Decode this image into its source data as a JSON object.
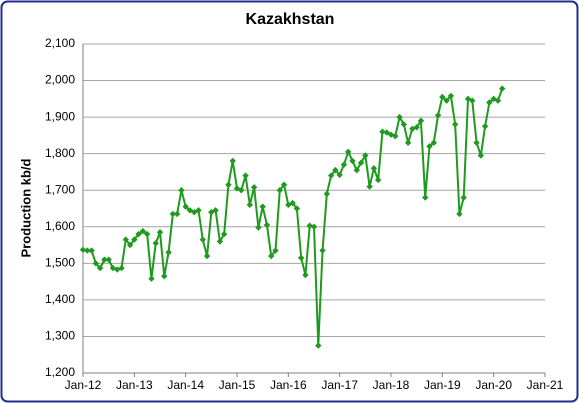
{
  "chart_data": {
    "type": "line",
    "title": "Kazakhstan",
    "y_label": "Production kb/d",
    "categories": [
      "Jan-12",
      null,
      null,
      null,
      null,
      null,
      null,
      null,
      null,
      null,
      null,
      null,
      "Jan-13",
      null,
      null,
      null,
      null,
      null,
      null,
      null,
      null,
      null,
      null,
      null,
      "Jan-14",
      null,
      null,
      null,
      null,
      null,
      null,
      null,
      null,
      null,
      null,
      null,
      "Jan-15",
      null,
      null,
      null,
      null,
      null,
      null,
      null,
      null,
      null,
      null,
      null,
      "Jan-16",
      null,
      null,
      null,
      null,
      null,
      null,
      null,
      null,
      null,
      null,
      null,
      "Jan-17",
      null,
      null,
      null,
      null,
      null,
      null,
      null,
      null,
      null,
      null,
      null,
      "Jan-18",
      null,
      null,
      null,
      null,
      null,
      null,
      null,
      null,
      null,
      null,
      null,
      "Jan-19",
      null,
      null,
      null,
      null,
      null,
      null,
      null,
      null,
      null,
      null,
      null,
      "Jan-20",
      null,
      null,
      null,
      null,
      null,
      null,
      null,
      null,
      null,
      null,
      null,
      "Jan-21"
    ],
    "series": [
      {
        "name": "Production",
        "color": "#1e9a1e",
        "values": [
          1537,
          1535,
          1535,
          1500,
          1487,
          1510,
          1510,
          1487,
          1483,
          1487,
          1565,
          1550,
          1565,
          1580,
          1588,
          1580,
          1458,
          1555,
          1585,
          1465,
          1530,
          1635,
          1635,
          1700,
          1655,
          1645,
          1640,
          1645,
          1565,
          1520,
          1640,
          1645,
          1560,
          1580,
          1715,
          1780,
          1705,
          1700,
          1740,
          1660,
          1708,
          1598,
          1655,
          1605,
          1520,
          1535,
          1700,
          1715,
          1660,
          1665,
          1650,
          1515,
          1468,
          1603,
          1600,
          1275,
          1535,
          1690,
          1740,
          1755,
          1742,
          1770,
          1805,
          1780,
          1755,
          1775,
          1795,
          1710,
          1760,
          1728,
          1860,
          1858,
          1852,
          1848,
          1900,
          1880,
          1830,
          1868,
          1872,
          1890,
          1680,
          1820,
          1830,
          1905,
          1955,
          1945,
          1958,
          1880,
          1635,
          1680,
          1950,
          1945,
          1830,
          1795,
          1875,
          1940,
          1950,
          1945,
          1978,
          null,
          null,
          null,
          null,
          null,
          null,
          null,
          null,
          null,
          null
        ]
      }
    ],
    "ylim": [
      1200,
      2100
    ],
    "yticks": [
      {
        "value": 1200,
        "label": "1,200"
      },
      {
        "value": 1300,
        "label": "1,300"
      },
      {
        "value": 1400,
        "label": "1,400"
      },
      {
        "value": 1500,
        "label": "1,500"
      },
      {
        "value": 1600,
        "label": "1,600"
      },
      {
        "value": 1700,
        "label": "1,700"
      },
      {
        "value": 1800,
        "label": "1,800"
      },
      {
        "value": 1900,
        "label": "1,900"
      },
      {
        "value": 2000,
        "label": "2,000"
      },
      {
        "value": 2100,
        "label": "2,100"
      }
    ],
    "grid": true
  }
}
